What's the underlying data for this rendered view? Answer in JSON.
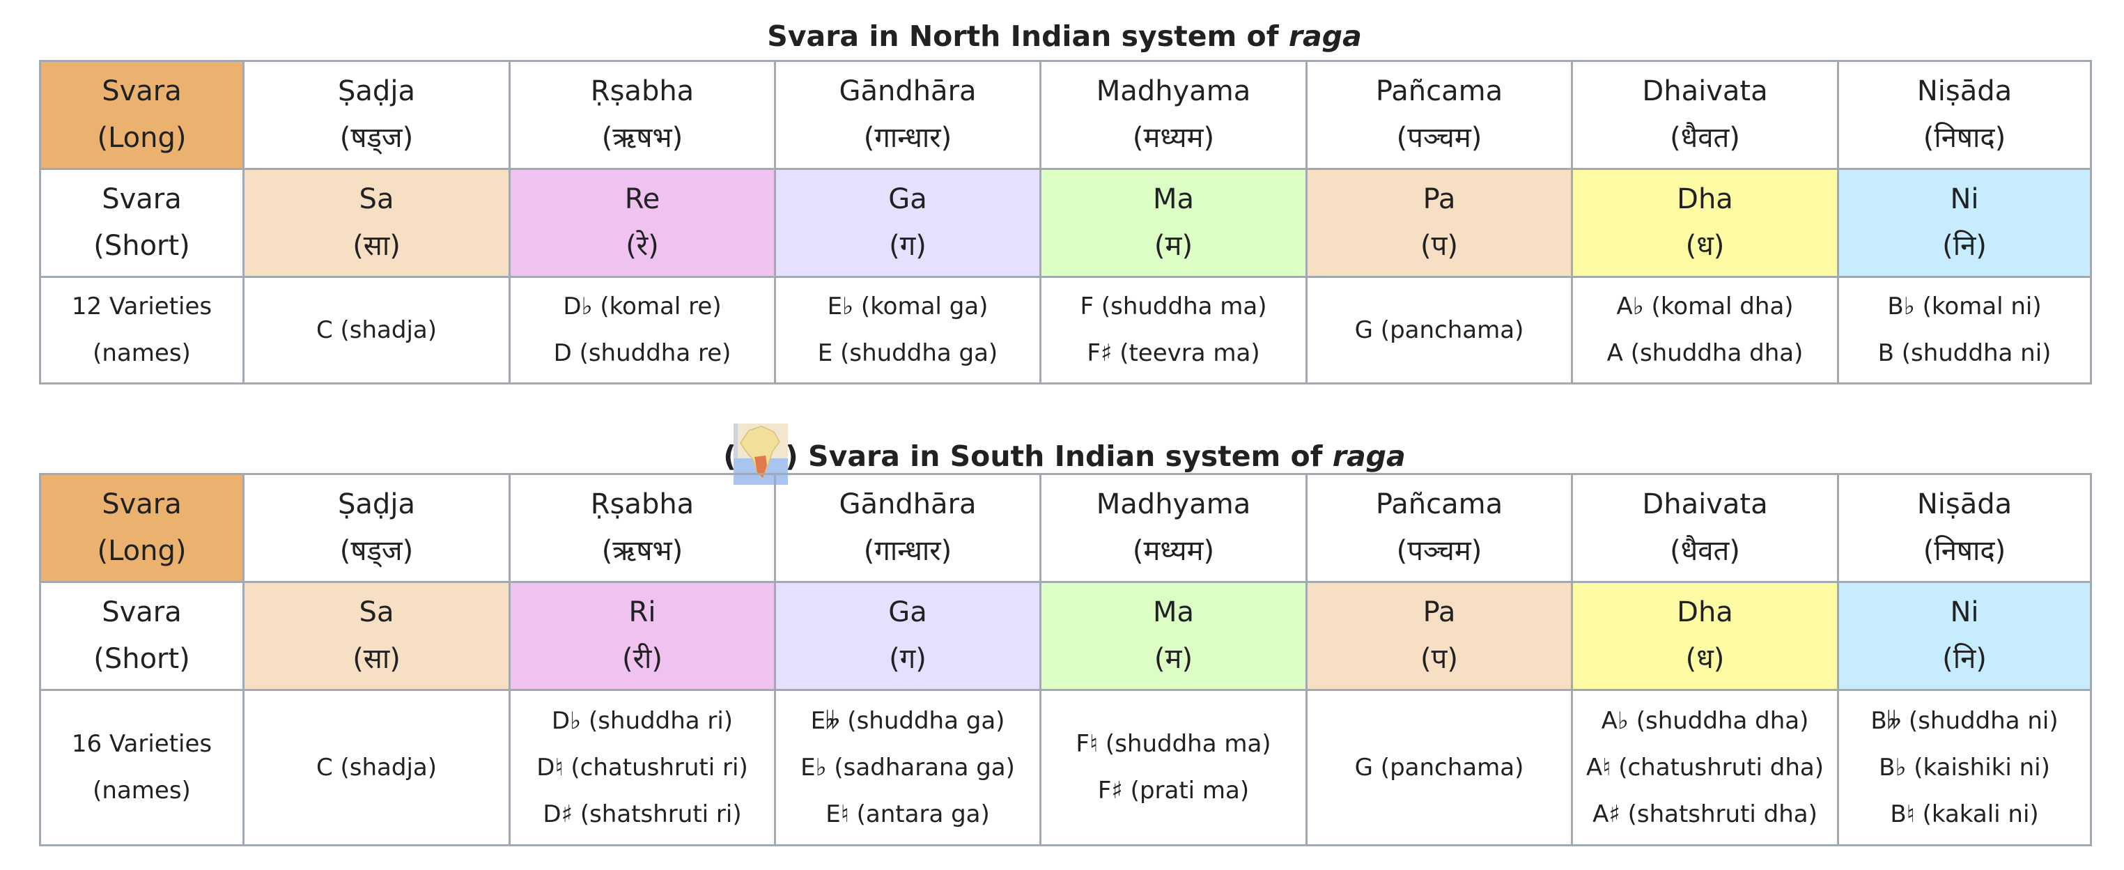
{
  "north": {
    "caption_text": "Svara in North Indian system of ",
    "caption_italic": "raga",
    "row_long": {
      "head": [
        "Svara",
        "(Long)"
      ],
      "cells": [
        [
          "Ṣaḍja",
          "(षड्ज)"
        ],
        [
          "Ṛṣabha",
          "(ऋषभ)"
        ],
        [
          "Gāndhāra",
          "(गान्धार)"
        ],
        [
          "Madhyama",
          "(मध्यम)"
        ],
        [
          "Pañcama",
          "(पञ्चम)"
        ],
        [
          "Dhaivata",
          "(धैवत)"
        ],
        [
          "Niṣāda",
          "(निषाद)"
        ]
      ]
    },
    "row_short": {
      "head": [
        "Svara",
        "(Short)"
      ],
      "cells": [
        [
          "Sa",
          "(सा)"
        ],
        [
          "Re",
          "(रे)"
        ],
        [
          "Ga",
          "(ग)"
        ],
        [
          "Ma",
          "(म)"
        ],
        [
          "Pa",
          "(प)"
        ],
        [
          "Dha",
          "(ध)"
        ],
        [
          "Ni",
          "(नि)"
        ]
      ]
    },
    "row_varieties": {
      "head": [
        "12 Varieties",
        "(names)"
      ],
      "cells": [
        [
          "C (shadja)"
        ],
        [
          "D♭ (komal re)",
          "D (shuddha re)"
        ],
        [
          "E♭ (komal ga)",
          "E (shuddha ga)"
        ],
        [
          "F (shuddha ma)",
          "F♯ (teevra ma)"
        ],
        [
          "G (panchama)"
        ],
        [
          "A♭ (komal dha)",
          "A (shuddha dha)"
        ],
        [
          "B♭ (komal ni)",
          "B (shuddha ni)"
        ]
      ]
    }
  },
  "south": {
    "caption_open": "(",
    "caption_text": ") Svara in South Indian system of ",
    "caption_italic": "raga",
    "row_long": {
      "head": [
        "Svara",
        "(Long)"
      ],
      "cells": [
        [
          "Ṣaḍja",
          "(षड्ज)"
        ],
        [
          "Ṛṣabha",
          "(ऋषभ)"
        ],
        [
          "Gāndhāra",
          "(गान्धार)"
        ],
        [
          "Madhyama",
          "(मध्यम)"
        ],
        [
          "Pañcama",
          "(पञ्चम)"
        ],
        [
          "Dhaivata",
          "(धैवत)"
        ],
        [
          "Niṣāda",
          "(निषाद)"
        ]
      ]
    },
    "row_short": {
      "head": [
        "Svara",
        "(Short)"
      ],
      "cells": [
        [
          "Sa",
          "(सा)"
        ],
        [
          "Ri",
          "(री)"
        ],
        [
          "Ga",
          "(ग)"
        ],
        [
          "Ma",
          "(म)"
        ],
        [
          "Pa",
          "(प)"
        ],
        [
          "Dha",
          "(ध)"
        ],
        [
          "Ni",
          "(नि)"
        ]
      ]
    },
    "row_varieties": {
      "head": [
        "16 Varieties",
        "(names)"
      ],
      "cells": [
        [
          "C (shadja)"
        ],
        [
          "D♭ (shuddha ri)",
          "D♮ (chatushruti ri)",
          "D♯ (shatshruti ri)"
        ],
        [
          "E𝄫 (shuddha ga)",
          "E♭ (sadharana ga)",
          "E♮ (antara ga)"
        ],
        [
          "F♮ (shuddha ma)",
          "F♯ (prati ma)"
        ],
        [
          "G (panchama)"
        ],
        [
          "A♭ (shuddha dha)",
          "A♮ (chatushruti dha)",
          "A♯ (shatshruti dha)"
        ],
        [
          "B𝄫 (shuddha ni)",
          "B♭ (kaishiki ni)",
          "B♮ (kakali ni)"
        ]
      ]
    }
  },
  "colors": {
    "long_head": "#ebb16f",
    "sa": "#f6dfc3",
    "re": "#efc2ef",
    "ga": "#e4e0fe",
    "ma": "#dcfdc3",
    "pa": "#f6dfc3",
    "dha": "#fdfca5",
    "ni": "#c6ecfd",
    "border": "#a2a9b1"
  },
  "icons": {
    "south_map": "south-india-map-icon"
  }
}
